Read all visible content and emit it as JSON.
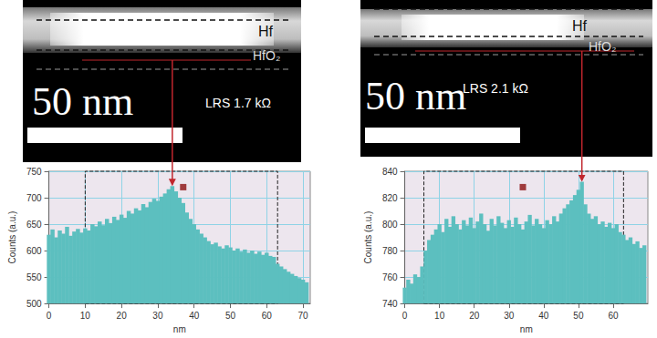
{
  "images": [
    {
      "labels": [
        "Hf",
        "HfO₂"
      ],
      "scale_bar": "50 nm",
      "annotation": "LRS 1.7 kΩ"
    },
    {
      "labels": [
        "Hf",
        "HfO₂"
      ],
      "scale_bar": "50 nm",
      "annotation": "LRS 2.1 kΩ"
    }
  ],
  "chart_data": [
    {
      "type": "bar",
      "x_label": "nm",
      "y_label": "Counts (a.u.)",
      "color": "#5cbfbf",
      "grid": true,
      "xlim": [
        0,
        72
      ],
      "xticks": [
        0,
        10,
        20,
        30,
        40,
        50,
        60,
        70
      ],
      "ylim": [
        500,
        750
      ],
      "yticks": [
        500,
        550,
        600,
        650,
        700,
        750
      ],
      "x": [
        0,
        1,
        2,
        3,
        4,
        5,
        6,
        7,
        8,
        9,
        10,
        11,
        12,
        13,
        14,
        15,
        16,
        17,
        18,
        19,
        20,
        21,
        22,
        23,
        24,
        25,
        26,
        27,
        28,
        29,
        30,
        31,
        32,
        33,
        34,
        35,
        36,
        37,
        38,
        39,
        40,
        41,
        42,
        43,
        44,
        45,
        46,
        47,
        48,
        49,
        50,
        51,
        52,
        53,
        54,
        55,
        56,
        57,
        58,
        59,
        60,
        61,
        62,
        63,
        64,
        65,
        66,
        67,
        68,
        69,
        70,
        71
      ],
      "values": [
        630,
        640,
        625,
        638,
        632,
        645,
        628,
        636,
        641,
        634,
        642,
        638,
        650,
        646,
        655,
        648,
        660,
        652,
        664,
        658,
        668,
        662,
        675,
        670,
        680,
        676,
        688,
        682,
        692,
        698,
        694,
        702,
        708,
        716,
        722,
        712,
        700,
        690,
        672,
        660,
        650,
        640,
        632,
        625,
        618,
        612,
        615,
        608,
        604,
        610,
        606,
        600,
        604,
        598,
        602,
        596,
        600,
        594,
        598,
        592,
        596,
        590,
        588,
        575,
        570,
        565,
        560,
        556,
        552,
        548,
        545,
        540
      ],
      "region": [
        10,
        63
      ],
      "point": [
        37,
        720
      ],
      "peak_x": 34
    },
    {
      "type": "bar",
      "x_label": "nm",
      "y_label": "Counts (a.u.)",
      "color": "#5cbfbf",
      "grid": true,
      "xlim": [
        0,
        70
      ],
      "xticks": [
        0,
        10,
        20,
        30,
        40,
        50,
        60
      ],
      "ylim": [
        740,
        840
      ],
      "yticks": [
        740,
        760,
        780,
        800,
        820,
        840
      ],
      "x": [
        0,
        1,
        2,
        3,
        4,
        5,
        6,
        7,
        8,
        9,
        10,
        11,
        12,
        13,
        14,
        15,
        16,
        17,
        18,
        19,
        20,
        21,
        22,
        23,
        24,
        25,
        26,
        27,
        28,
        29,
        30,
        31,
        32,
        33,
        34,
        35,
        36,
        37,
        38,
        39,
        40,
        41,
        42,
        43,
        44,
        45,
        46,
        47,
        48,
        49,
        50,
        51,
        52,
        53,
        54,
        55,
        56,
        57,
        58,
        59,
        60,
        61,
        62,
        63,
        64,
        65,
        66,
        67,
        68,
        69
      ],
      "values": [
        752,
        758,
        755,
        762,
        760,
        768,
        780,
        788,
        792,
        796,
        800,
        794,
        804,
        798,
        806,
        800,
        796,
        803,
        799,
        805,
        797,
        802,
        808,
        800,
        795,
        804,
        799,
        806,
        801,
        797,
        803,
        798,
        805,
        800,
        796,
        802,
        807,
        799,
        804,
        800,
        797,
        803,
        800,
        806,
        802,
        808,
        812,
        815,
        818,
        822,
        826,
        832,
        815,
        808,
        804,
        806,
        800,
        802,
        798,
        801,
        797,
        800,
        794,
        792,
        788,
        790,
        785,
        787,
        782,
        784
      ],
      "region": [
        5.5,
        63
      ],
      "point": [
        34,
        828
      ],
      "peak_x": 51
    }
  ]
}
